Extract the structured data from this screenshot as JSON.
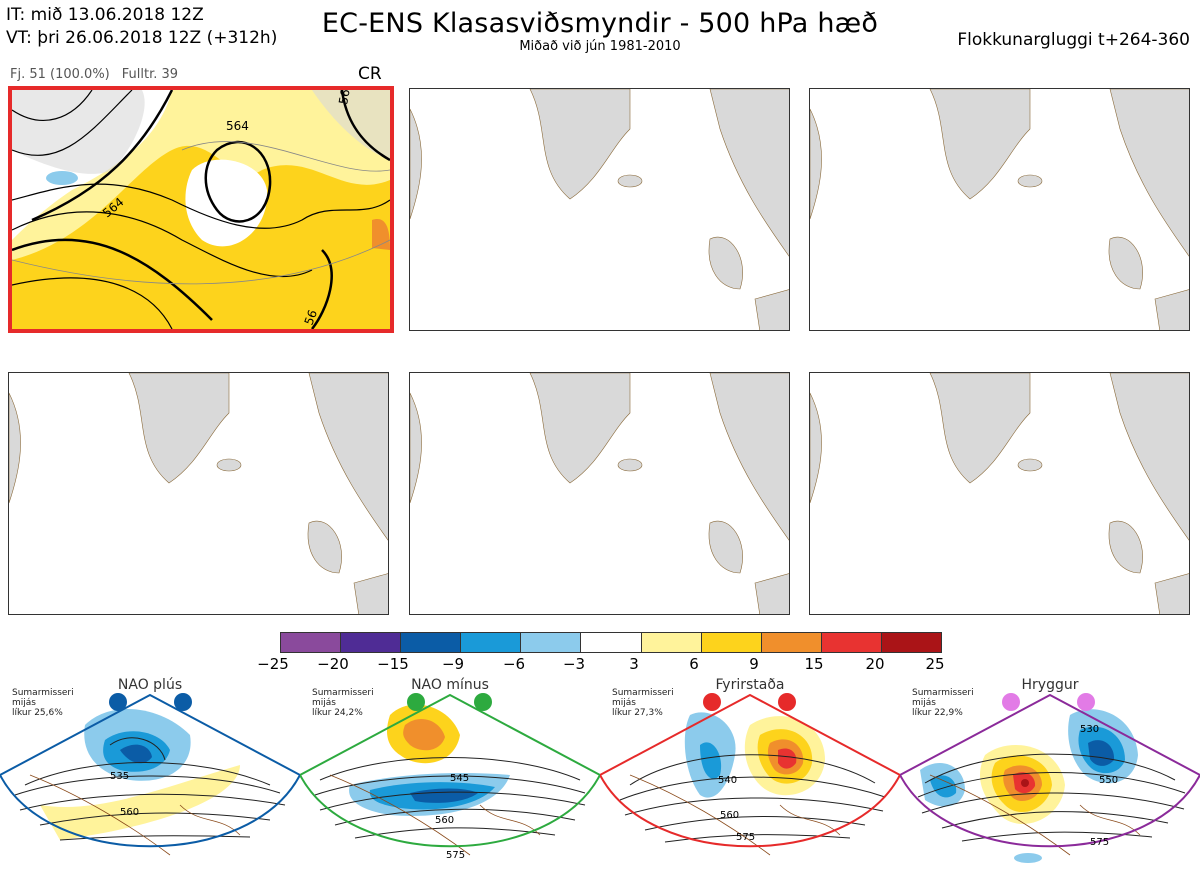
{
  "header": {
    "it_line": "IT: mið 13.06.2018 12Z",
    "vt_line": "VT: þri 26.06.2018 12Z  (+312h)",
    "title": "EC-ENS Klasasviðsmyndir - 500 hPa hæð",
    "subtitle": "Miðað við jún 1981-2010",
    "window": "Flokkunargluggi t+264-360"
  },
  "cluster_panel": {
    "count": "Fj. 51 (100.0%)",
    "representative": "Fulltr. 39",
    "tag": "CR",
    "contour_labels": [
      "564",
      "564",
      "564",
      "56",
      "56"
    ]
  },
  "colorbar": {
    "colors": [
      "#8a4a9c",
      "#4f2c95",
      "#0b5ca6",
      "#1a9ad8",
      "#8ccbec",
      "#ffffff",
      "#fff39b",
      "#fdd31c",
      "#f08f2c",
      "#e83331",
      "#aa1417"
    ],
    "labels": [
      "−25",
      "−20",
      "−15",
      "−9",
      "−6",
      "−3",
      "3",
      "6",
      "9",
      "15",
      "20",
      "25"
    ]
  },
  "regimes": [
    {
      "name": "NAO plús",
      "note": [
        "Sumarmisseri",
        "mijás",
        "líkur 25,6%"
      ],
      "color": "#0b5ca6",
      "labels": [
        "535",
        "560"
      ]
    },
    {
      "name": "NAO mínus",
      "note": [
        "Sumarmisseri",
        "mijás",
        "líkur 24,2%"
      ],
      "color": "#2daa3f",
      "labels": [
        "545",
        "560",
        "575"
      ]
    },
    {
      "name": "Fyrirstaða",
      "note": [
        "Sumarmisseri",
        "mijás",
        "líkur 27,3%"
      ],
      "color": "#e62a2a",
      "labels": [
        "540",
        "560",
        "575"
      ]
    },
    {
      "name": "Hryggur",
      "note": [
        "Sumarmisseri",
        "mijás",
        "líkur 22,9%"
      ],
      "color": "#8b2a9a",
      "labels": [
        "530",
        "550",
        "575"
      ]
    }
  ]
}
